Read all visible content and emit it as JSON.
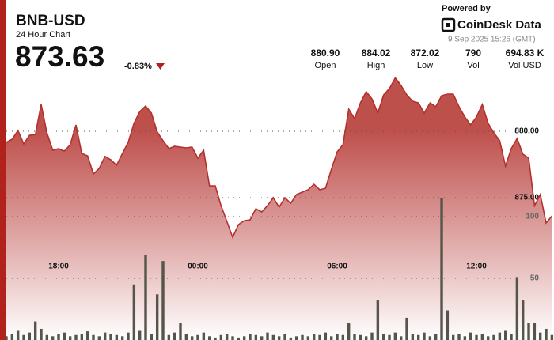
{
  "chart_data": {
    "type": "area",
    "title": "BNB-USD",
    "subtitle": "24 Hour Chart",
    "price": "873.63",
    "change": "-0.83%",
    "stats": [
      {
        "value": "880.90",
        "label": "Open"
      },
      {
        "value": "884.02",
        "label": "High"
      },
      {
        "value": "872.02",
        "label": "Low"
      },
      {
        "value": "790",
        "label": "Vol"
      },
      {
        "value": "694.83 K",
        "label": "Vol USD"
      }
    ],
    "powered_by": "Powered by",
    "brand": "CoinDesk Data",
    "timestamp": "9 Sep 2025 15:26 (GMT)",
    "x": [
      0.75,
      1,
      1.25,
      1.5,
      1.75,
      2,
      2.25,
      2.5,
      2.75,
      3,
      3.25,
      3.5,
      3.75,
      4,
      4.25,
      4.5,
      4.75,
      5,
      5.25,
      5.5,
      5.75,
      6,
      6.25,
      6.5,
      6.75,
      7,
      7.25,
      7.5,
      7.75,
      8,
      8.25,
      8.5,
      8.75,
      9,
      9.25,
      9.5,
      9.75,
      10,
      10.25,
      10.5,
      10.75,
      11,
      11.25,
      11.5,
      11.75,
      12,
      12.25,
      12.5,
      12.75,
      13,
      13.25,
      13.5,
      13.75,
      14,
      14.25,
      14.5,
      14.75,
      15,
      15.25,
      15.5,
      15.75,
      16,
      16.25,
      16.5,
      16.75,
      17,
      17.25,
      17.5,
      17.75,
      18,
      18.25,
      18.5,
      18.75,
      19,
      19.25,
      19.5,
      19.75,
      20,
      20.25,
      20.5,
      20.75,
      21,
      21.25,
      21.5,
      21.75,
      22,
      22.25,
      22.5,
      22.75,
      23,
      23.25,
      23.5,
      23.75,
      24,
      24.25
    ],
    "series": [
      {
        "name": "Price",
        "color": "#b3312d",
        "values": [
          879.17,
          879.4,
          880.06,
          879.05,
          879.7,
          879.76,
          882.02,
          879.88,
          878.57,
          878.69,
          878.51,
          878.99,
          880.48,
          878.33,
          878.15,
          876.79,
          877.2,
          878.1,
          877.86,
          877.44,
          878.33,
          879.17,
          880.6,
          881.49,
          881.9,
          881.37,
          879.94,
          879.29,
          878.69,
          878.87,
          878.81,
          878.75,
          878.81,
          877.98,
          878.57,
          875.89,
          875.89,
          874.4,
          873.21,
          872.02,
          872.98,
          873.27,
          873.33,
          874.17,
          873.93,
          874.4,
          875.0,
          874.29,
          875.0,
          874.58,
          875.24,
          875.42,
          875.6,
          876.01,
          875.6,
          875.71,
          877.14,
          878.45,
          878.99,
          881.67,
          880.95,
          882.14,
          882.98,
          882.44,
          881.37,
          882.74,
          883.21,
          884.02,
          883.45,
          882.74,
          882.26,
          882.14,
          881.37,
          882.14,
          881.85,
          882.68,
          882.8,
          882.8,
          881.85,
          881.07,
          880.48,
          881.07,
          882.02,
          880.6,
          879.88,
          879.29,
          877.38,
          878.69,
          879.46,
          878.27,
          877.98,
          874.4,
          875.24,
          873.1,
          873.63
        ]
      },
      {
        "name": "Vol",
        "color": "#55554b",
        "axis": "y2",
        "values": [
          3,
          5,
          8,
          4,
          6,
          15,
          9,
          4,
          3,
          5,
          6,
          3,
          4,
          5,
          7,
          4,
          3,
          6,
          5,
          4,
          3,
          6,
          45,
          8,
          69,
          5,
          37,
          64,
          4,
          6,
          14,
          5,
          3,
          4,
          6,
          3,
          2,
          4,
          5,
          3,
          2,
          3,
          5,
          4,
          3,
          6,
          4,
          3,
          5,
          2,
          3,
          4,
          3,
          5,
          4,
          6,
          3,
          5,
          4,
          14,
          5,
          4,
          3,
          6,
          32,
          5,
          4,
          6,
          3,
          18,
          5,
          4,
          6,
          3,
          5,
          115,
          24,
          4,
          5,
          3,
          6,
          4,
          5,
          3,
          4,
          6,
          8,
          5,
          51,
          32,
          14,
          14,
          6,
          9,
          4
        ]
      }
    ],
    "xlim": [
      0.75,
      24.34
    ],
    "xticks": [
      {
        "value": 3,
        "label": "18:00"
      },
      {
        "value": 9,
        "label": "00:00"
      },
      {
        "value": 15,
        "label": "06:00"
      },
      {
        "value": 21,
        "label": "12:00"
      }
    ],
    "ylim": [
      864.29,
      889.88
    ],
    "yticks": [
      {
        "value": 880,
        "label": "880.00"
      },
      {
        "value": 875,
        "label": "875.00"
      }
    ],
    "y2lim": [
      0,
      275.6
    ],
    "y2ticks": [
      100,
      50
    ],
    "grid": true
  }
}
